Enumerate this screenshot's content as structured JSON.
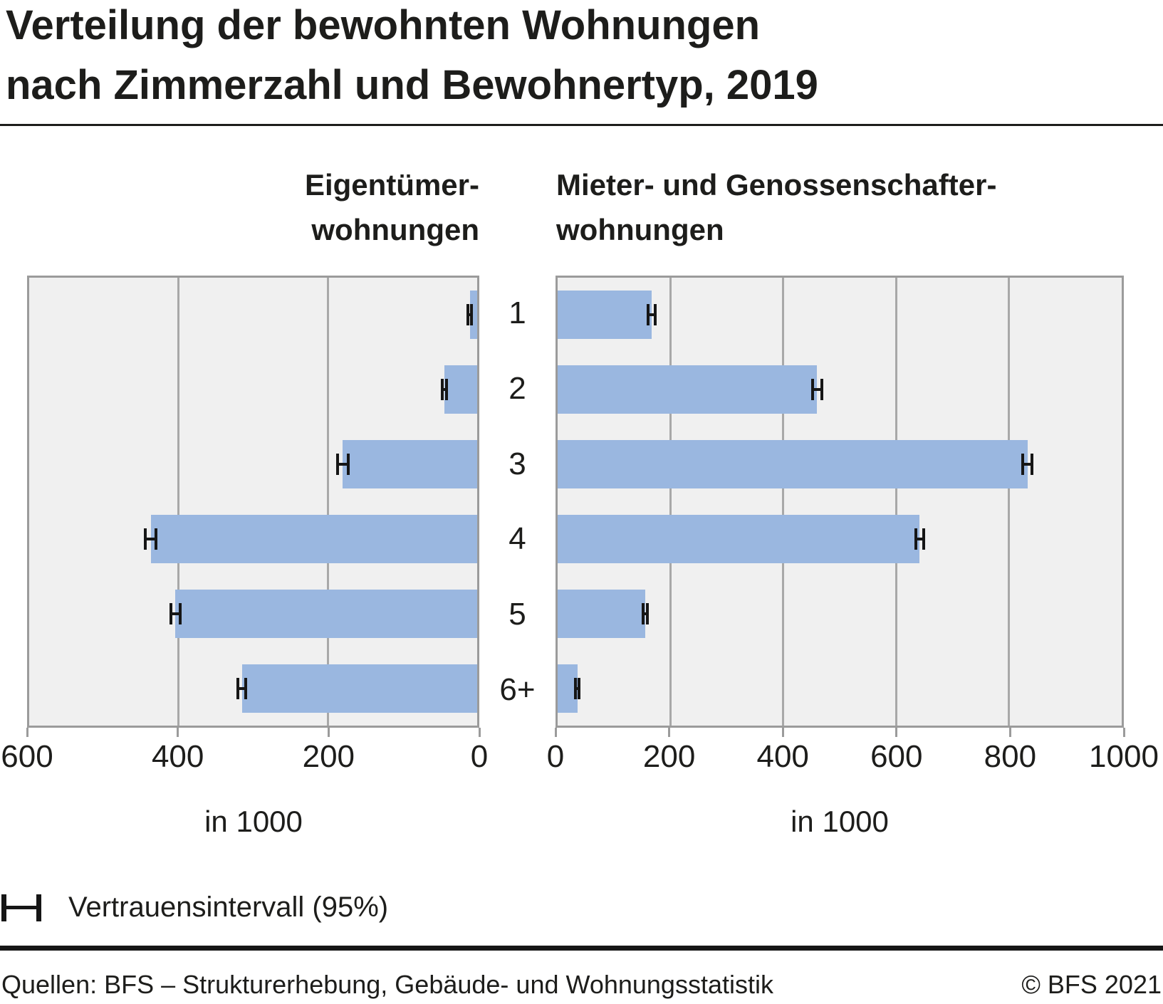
{
  "title": {
    "line1": "Verteilung der bewohnten Wohnungen",
    "line2": "nach Zimmerzahl und Bewohnertyp, 2019"
  },
  "chart_data": {
    "type": "bar",
    "orientation": "horizontal",
    "title": "Verteilung der bewohnten Wohnungen nach Zimmerzahl und Bewohnertyp, 2019",
    "categories": [
      "1",
      "2",
      "3",
      "4",
      "5",
      "6+"
    ],
    "grid": true,
    "unit_label": "in 1000",
    "legend": {
      "label": "Vertrauensintervall (95%)",
      "marker": "error-bar-icon",
      "position": "bottom-left"
    },
    "panels": [
      {
        "id": "owner",
        "title_line1": "Eigentümer-",
        "title_line2": "wohnungen",
        "direction": "left",
        "xlabel": "in 1000",
        "axis": {
          "min": 0,
          "max": 600,
          "ticks": [
            600,
            400,
            200,
            0
          ]
        },
        "values": [
          10,
          44,
          180,
          437,
          404,
          315
        ],
        "ci95": [
          3,
          5,
          9,
          9,
          8,
          7
        ]
      },
      {
        "id": "renter",
        "title_line1": "Mieter- und Genossenschafter-",
        "title_line2": "wohnungen",
        "direction": "right",
        "xlabel": "in 1000",
        "axis": {
          "min": 0,
          "max": 1000,
          "ticks": [
            0,
            200,
            400,
            600,
            800,
            1000
          ]
        },
        "values": [
          167,
          460,
          833,
          642,
          155,
          35
        ],
        "ci95": [
          9,
          11,
          11,
          9,
          6,
          4
        ]
      }
    ],
    "colors": {
      "bar": "#9ab7e0",
      "plot_bg": "#f0f0f0",
      "grid": "#a8a8a8",
      "border": "#9b9b9b",
      "error_bar": "#161616",
      "text": "#1d1d1b"
    }
  },
  "footer": {
    "source": "Quellen: BFS – Strukturerhebung, Gebäude- und Wohnungsstatistik",
    "copyright": "© BFS 2021"
  }
}
